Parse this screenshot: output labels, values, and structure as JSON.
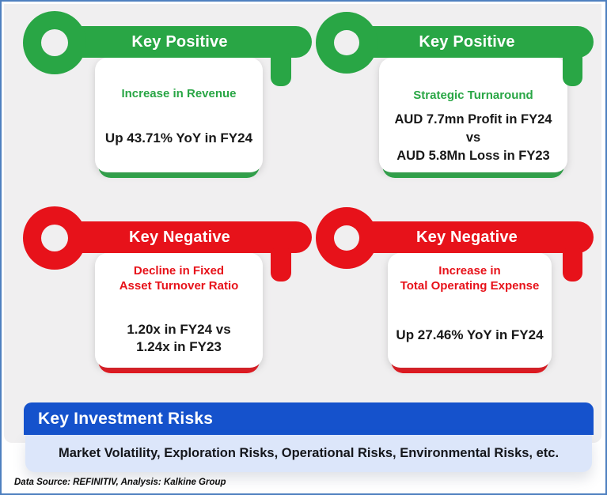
{
  "theme": {
    "positive_color": "#29a645",
    "negative_color": "#e7121a",
    "risk_bar_color": "#1552cc",
    "risk_panel_color": "#dce6fa",
    "frame_border_color": "#4e80bf",
    "background_color": "#f0eff0"
  },
  "cards": [
    {
      "sentiment": "positive",
      "header": "Key Positive",
      "title_lines": [
        "Increase in Revenue"
      ],
      "lines": [
        "Up 43.71% YoY in FY24"
      ]
    },
    {
      "sentiment": "positive",
      "header": "Key Positive",
      "title_lines": [
        "Strategic Turnaround"
      ],
      "lines": [
        "AUD 7.7mn Profit in FY24",
        "vs",
        "AUD 5.8Mn Loss in FY23"
      ]
    },
    {
      "sentiment": "negative",
      "header": "Key Negative",
      "title_lines": [
        "Decline in Fixed",
        "Asset Turnover Ratio"
      ],
      "lines": [
        "1.20x in FY24 vs",
        "1.24x in FY23"
      ]
    },
    {
      "sentiment": "negative",
      "header": "Key Negative",
      "title_lines": [
        "Increase in",
        "Total Operating Expense"
      ],
      "lines": [
        "Up 27.46% YoY in FY24"
      ]
    }
  ],
  "risks": {
    "heading": "Key Investment Risks",
    "items_text": "Market Volatility, Exploration Risks, Operational Risks, Environmental Risks, etc."
  },
  "footer": {
    "source_note": "Data Source: REFINITIV, Analysis: Kalkine Group"
  }
}
